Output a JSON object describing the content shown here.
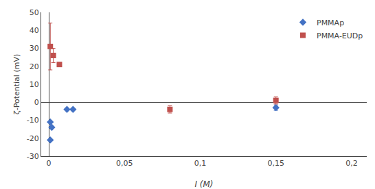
{
  "chart_data": {
    "type": "scatter",
    "xlabel": "I (M)",
    "ylabel": "ζ-Potential (mV)",
    "xlim": [
      -0.005,
      0.21
    ],
    "ylim": [
      -30,
      50
    ],
    "xticks": [
      0,
      {
        "value": 0.05,
        "label": "0,05"
      },
      {
        "value": 0.1,
        "label": "0,1"
      },
      {
        "value": 0.15,
        "label": "0,15"
      },
      {
        "value": 0.2,
        "label": "0,2"
      }
    ],
    "yticks": [
      -30,
      -20,
      -10,
      0,
      10,
      20,
      30,
      40,
      50
    ],
    "grid": false,
    "legend": "upper right",
    "series": [
      {
        "name": "PMMAp",
        "color": "#4472C4",
        "marker": "diamond",
        "x": [
          0.001,
          0.001,
          0.002,
          0.012,
          0.016,
          0.15
        ],
        "values": [
          -21,
          -11,
          -14,
          -4,
          -4,
          -3
        ],
        "yerr": [
          0,
          0,
          0,
          0,
          0,
          1.5
        ]
      },
      {
        "name": "PMMA-EUDp",
        "color": "#C0504D",
        "marker": "square",
        "x": [
          0.001,
          0.003,
          0.007,
          0.08,
          0.15
        ],
        "values": [
          31,
          26,
          21,
          -4,
          1
        ],
        "yerr": [
          13,
          4,
          1,
          2,
          2
        ]
      }
    ]
  }
}
